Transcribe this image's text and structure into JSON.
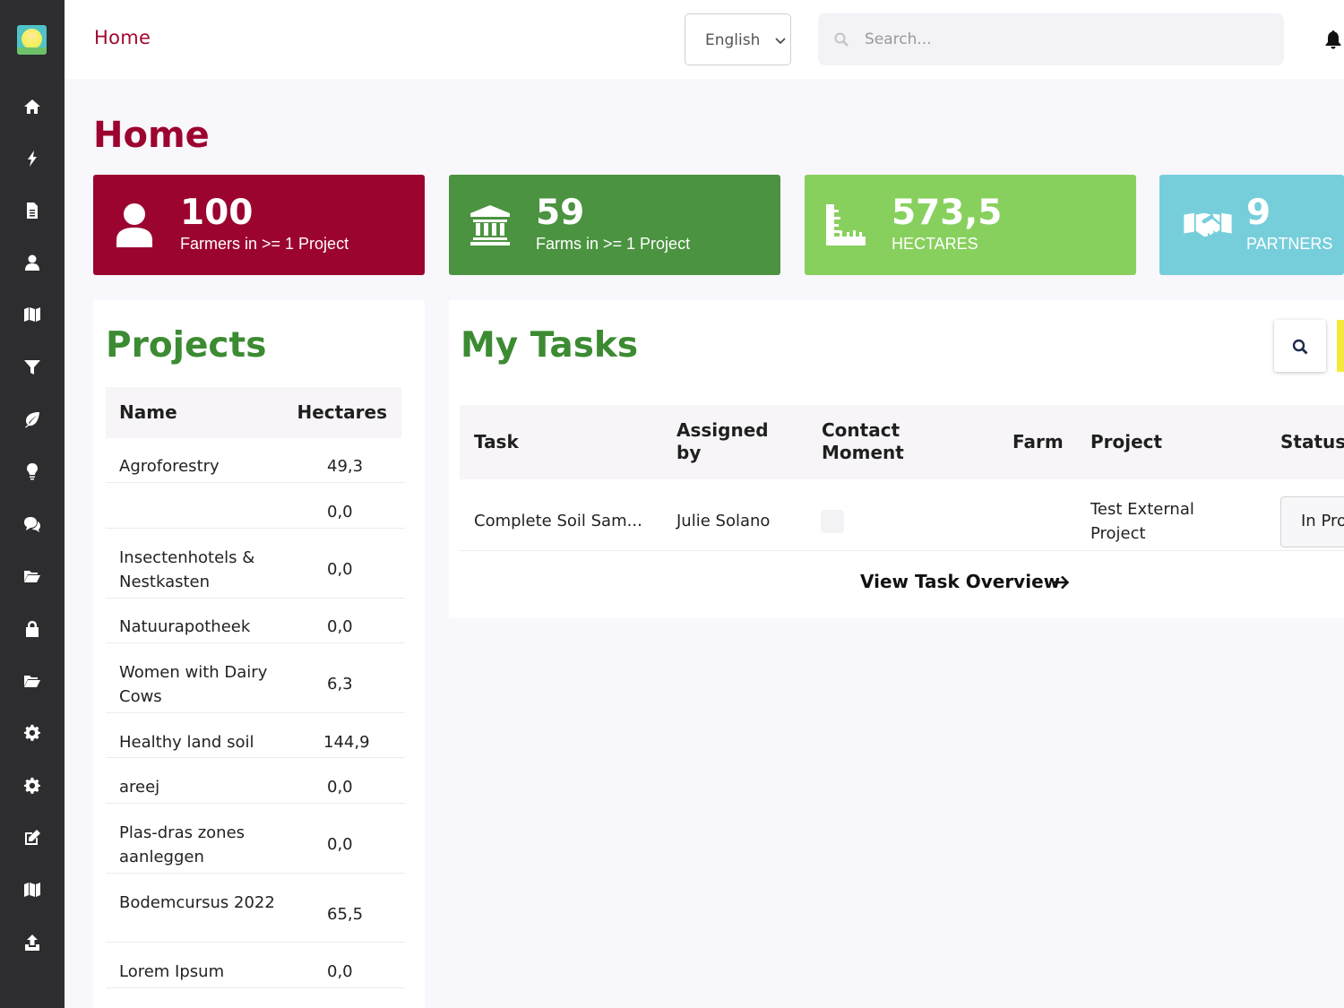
{
  "sidebar": {
    "logo": "app-logo",
    "items": [
      {
        "icon": "home-icon"
      },
      {
        "icon": "bolt-icon"
      },
      {
        "icon": "document-icon"
      },
      {
        "icon": "user-icon"
      },
      {
        "icon": "map-icon"
      },
      {
        "icon": "filter-icon"
      },
      {
        "icon": "leaf-icon"
      },
      {
        "icon": "lightbulb-icon"
      },
      {
        "icon": "chat-icon"
      },
      {
        "icon": "folder-open-icon"
      },
      {
        "icon": "lock-icon"
      },
      {
        "icon": "folder-icon"
      },
      {
        "icon": "gear-icon"
      },
      {
        "icon": "settings-icon"
      },
      {
        "icon": "edit-icon"
      },
      {
        "icon": "map-alt-icon"
      },
      {
        "icon": "upload-icon"
      }
    ]
  },
  "topbar": {
    "breadcrumb": "Home",
    "language": "English",
    "search_placeholder": "Search..."
  },
  "page": {
    "title": "Home"
  },
  "stats": [
    {
      "value": "100",
      "label": "Farmers in >= 1 Project",
      "color": "#9c0430",
      "icon": "user-icon"
    },
    {
      "value": "59",
      "label": "Farms in >= 1 Project",
      "color": "#4b9340",
      "icon": "bank-icon"
    },
    {
      "value": "573,5",
      "label": "HECTARES",
      "color": "#88d05e",
      "icon": "ruler-icon"
    },
    {
      "value": "9",
      "label": "PARTNERS",
      "color": "#77cedb",
      "icon": "handshake-icon"
    }
  ],
  "projects": {
    "title": "Projects",
    "columns": [
      "Name",
      "Hectares"
    ],
    "rows": [
      {
        "name": "Agroforestry",
        "hectares": "49,3"
      },
      {
        "name": "",
        "hectares": "0,0"
      },
      {
        "name": "Insectenhotels & Nestkasten",
        "hectares": "0,0"
      },
      {
        "name": "Natuurapotheek",
        "hectares": "0,0"
      },
      {
        "name": "Women with Dairy Cows",
        "hectares": "6,3"
      },
      {
        "name": "Healthy land soil",
        "hectares": "144,9"
      },
      {
        "name": "areej",
        "hectares": "0,0"
      },
      {
        "name": "Plas-dras zones aanleggen",
        "hectares": "0,0"
      },
      {
        "name": "Bodemcursus 2022",
        "hectares": "65,5"
      },
      {
        "name": "Lorem Ipsum",
        "hectares": "0,0"
      }
    ]
  },
  "tasks": {
    "title": "My Tasks",
    "columns": {
      "task": "Task",
      "assigned_by": "Assigned by",
      "contact_moment": "Contact Moment",
      "farm": "Farm",
      "project": "Project",
      "status": "Status"
    },
    "rows": [
      {
        "task": "Complete Soil Sam...",
        "assigned_by": "Julie Solano",
        "farm": "",
        "project": "Test External Project",
        "status": "In Progress"
      }
    ],
    "view_link": "View Task Overview"
  },
  "colors": {
    "brand": "#9c0430",
    "green_title": "#3c8b32",
    "sidebar": "#2d2d2f"
  }
}
